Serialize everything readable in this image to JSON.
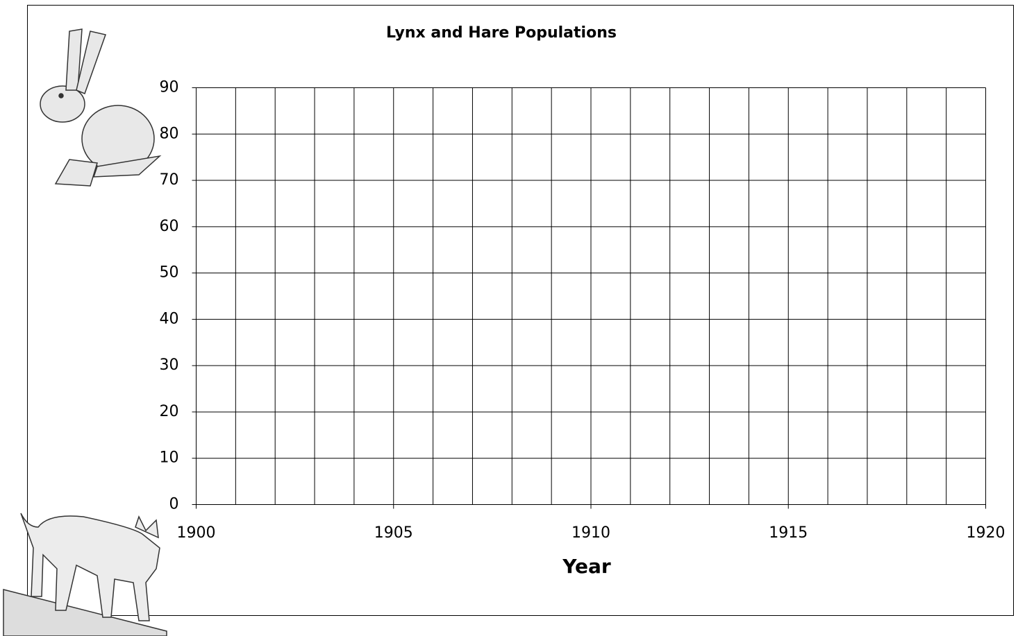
{
  "chart_data": {
    "type": "line",
    "title": "Lynx and Hare Populations",
    "x_label": "Year",
    "xlim": [
      1900,
      1920
    ],
    "xticks": [
      1900,
      1905,
      1910,
      1915,
      1920
    ],
    "x_grid_step": 1,
    "ylim": [
      0,
      90
    ],
    "yticks": [
      0,
      10,
      20,
      30,
      40,
      50,
      60,
      70,
      80,
      90
    ],
    "grid": true,
    "series": []
  }
}
